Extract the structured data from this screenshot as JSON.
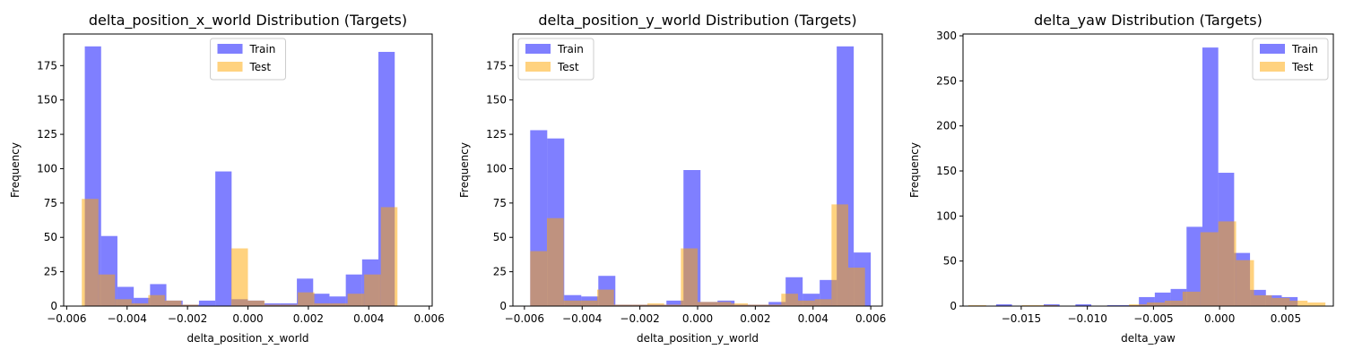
{
  "colors": {
    "train": "#0000ff",
    "test": "#ffa500",
    "axis": "#000000",
    "background": "#ffffff"
  },
  "chart_data": [
    {
      "type": "bar",
      "title": "delta_position_x_world Distribution (Targets)",
      "xlabel": "delta_position_x_world",
      "ylabel": "Frequency",
      "xlim": [
        -0.0061,
        0.0061
      ],
      "ylim": [
        0,
        198
      ],
      "xticks": [
        -0.006,
        -0.004,
        -0.002,
        0.0,
        0.002,
        0.004,
        0.006
      ],
      "xtick_labels": [
        "−0.006",
        "−0.004",
        "−0.002",
        "0.000",
        "0.002",
        "0.004",
        "0.006"
      ],
      "yticks": [
        0,
        25,
        50,
        75,
        100,
        125,
        150,
        175
      ],
      "ytick_labels": [
        "0",
        "25",
        "50",
        "75",
        "100",
        "125",
        "150",
        "175"
      ],
      "legend_position": "upper-center",
      "grid": false,
      "series": [
        {
          "name": "Train",
          "color": "#0000ff",
          "alpha": 0.5,
          "bin_start": -0.0054,
          "bin_width": 0.00054,
          "values": [
            189,
            51,
            14,
            6,
            16,
            4,
            1,
            4,
            98,
            5,
            4,
            2,
            2,
            20,
            9,
            7,
            23,
            34,
            185
          ]
        },
        {
          "name": "Test",
          "color": "#ffa500",
          "alpha": 0.5,
          "bin_start": -0.0055,
          "bin_width": 0.00055,
          "values": [
            78,
            23,
            5,
            2,
            8,
            4,
            1,
            0,
            0,
            42,
            4,
            1,
            1,
            10,
            2,
            2,
            9,
            23,
            72
          ]
        }
      ]
    },
    {
      "type": "bar",
      "title": "delta_position_y_world Distribution (Targets)",
      "xlabel": "delta_position_y_world",
      "ylabel": "Frequency",
      "xlim": [
        -0.0064,
        0.0064
      ],
      "ylim": [
        0,
        198
      ],
      "xticks": [
        -0.006,
        -0.004,
        -0.002,
        0.0,
        0.002,
        0.004,
        0.006
      ],
      "xtick_labels": [
        "−0.006",
        "−0.004",
        "−0.002",
        "0.000",
        "0.002",
        "0.004",
        "0.006"
      ],
      "yticks": [
        0,
        25,
        50,
        75,
        100,
        125,
        150,
        175
      ],
      "ytick_labels": [
        "0",
        "25",
        "50",
        "75",
        "100",
        "125",
        "150",
        "175"
      ],
      "legend_position": "upper-left",
      "grid": false,
      "series": [
        {
          "name": "Train",
          "color": "#0000ff",
          "alpha": 0.5,
          "bin_start": -0.0058,
          "bin_width": 0.00059,
          "values": [
            128,
            122,
            8,
            7,
            22,
            1,
            1,
            1,
            4,
            99,
            3,
            4,
            1,
            1,
            3,
            21,
            9,
            19,
            189,
            39
          ]
        },
        {
          "name": "Test",
          "color": "#ffa500",
          "alpha": 0.5,
          "bin_start": -0.0058,
          "bin_width": 0.00058,
          "values": [
            40,
            64,
            4,
            4,
            12,
            1,
            1,
            2,
            1,
            42,
            3,
            3,
            2,
            1,
            1,
            9,
            4,
            5,
            74,
            28
          ]
        }
      ]
    },
    {
      "type": "bar",
      "title": "delta_yaw Distribution (Targets)",
      "xlabel": "delta_yaw",
      "ylabel": "Frequency",
      "xlim": [
        -0.0194,
        0.0086
      ],
      "ylim": [
        0,
        302
      ],
      "xticks": [
        -0.015,
        -0.01,
        -0.005,
        0.0,
        0.005
      ],
      "xtick_labels": [
        "−0.015",
        "−0.010",
        "−0.005",
        "0.000",
        "0.005"
      ],
      "yticks": [
        0,
        50,
        100,
        150,
        200,
        250,
        300
      ],
      "ytick_labels": [
        "0",
        "50",
        "100",
        "150",
        "200",
        "250",
        "300"
      ],
      "legend_position": "upper-right",
      "grid": false,
      "series": [
        {
          "name": "Train",
          "color": "#0000ff",
          "alpha": 0.5,
          "bin_start": -0.0181,
          "bin_width": 0.0012,
          "values": [
            0,
            2,
            0,
            0,
            2,
            0,
            2,
            0,
            1,
            1,
            10,
            15,
            19,
            88,
            287,
            148,
            59,
            18,
            12,
            10
          ]
        },
        {
          "name": "Test",
          "color": "#ffa500",
          "alpha": 0.5,
          "bin_start": -0.019,
          "bin_width": 0.00135,
          "values": [
            1,
            0,
            0,
            1,
            1,
            0,
            0,
            0,
            0,
            2,
            4,
            6,
            16,
            82,
            94,
            51,
            12,
            9,
            6,
            4
          ]
        }
      ]
    }
  ]
}
